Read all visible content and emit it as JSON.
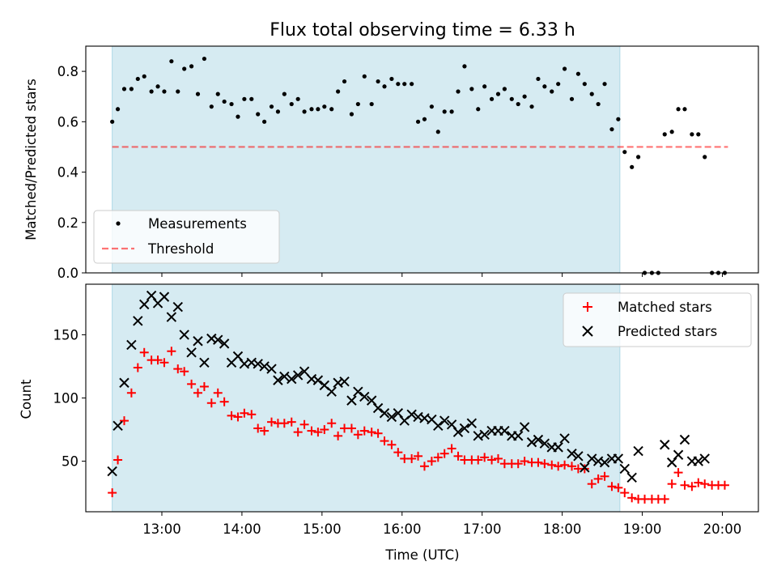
{
  "figure": {
    "title": "Flux total observing time = 6.33 h",
    "xlabel": "Time (UTC)",
    "x_tick_labels": [
      "13:00",
      "14:00",
      "15:00",
      "16:00",
      "17:00",
      "18:00",
      "19:00",
      "20:00"
    ],
    "colors": {
      "shade": "#add8e6",
      "measurement": "#000000",
      "threshold": "#ff0000",
      "matched": "#ff0000",
      "predicted": "#000000"
    }
  },
  "chart_data": [
    {
      "type": "scatter",
      "ylabel": "Matched/Predicted stars",
      "ylim": [
        0,
        0.9
      ],
      "xlim_hours": [
        12.05,
        20.45
      ],
      "y_ticks": [
        0.0,
        0.2,
        0.4,
        0.6,
        0.8
      ],
      "y_tick_labels": [
        "0.0",
        "0.2",
        "0.4",
        "0.6",
        "0.8"
      ],
      "grid": false,
      "legend_position": "lower-left",
      "shaded_span_hours": [
        12.38,
        18.72
      ],
      "threshold": {
        "name": "Threshold",
        "value": 0.5,
        "x_range_hours": [
          12.38,
          20.07
        ],
        "style": "dashed"
      },
      "series": [
        {
          "name": "Measurements",
          "x_hours": [
            12.38,
            12.45,
            12.53,
            12.62,
            12.7,
            12.78,
            12.87,
            12.95,
            13.03,
            13.12,
            13.2,
            13.28,
            13.37,
            13.45,
            13.53,
            13.62,
            13.7,
            13.78,
            13.87,
            13.95,
            14.03,
            14.12,
            14.2,
            14.28,
            14.37,
            14.45,
            14.53,
            14.62,
            14.7,
            14.78,
            14.87,
            14.95,
            15.03,
            15.12,
            15.2,
            15.28,
            15.37,
            15.45,
            15.53,
            15.62,
            15.7,
            15.78,
            15.87,
            15.95,
            16.03,
            16.12,
            16.2,
            16.28,
            16.37,
            16.45,
            16.53,
            16.62,
            16.7,
            16.78,
            16.87,
            16.95,
            17.03,
            17.12,
            17.2,
            17.28,
            17.37,
            17.45,
            17.53,
            17.62,
            17.7,
            17.78,
            17.87,
            17.95,
            18.03,
            18.12,
            18.2,
            18.28,
            18.37,
            18.45,
            18.53,
            18.62,
            18.7,
            18.78,
            18.87,
            18.95,
            19.03,
            19.12,
            19.2,
            19.28,
            19.37,
            19.45,
            19.53,
            19.62,
            19.7,
            19.78,
            19.87,
            19.95,
            20.03
          ],
          "y": [
            0.6,
            0.65,
            0.73,
            0.73,
            0.77,
            0.78,
            0.72,
            0.74,
            0.72,
            0.84,
            0.72,
            0.81,
            0.82,
            0.71,
            0.85,
            0.66,
            0.71,
            0.68,
            0.67,
            0.62,
            0.69,
            0.69,
            0.63,
            0.6,
            0.66,
            0.64,
            0.71,
            0.67,
            0.69,
            0.64,
            0.65,
            0.65,
            0.66,
            0.65,
            0.72,
            0.76,
            0.63,
            0.67,
            0.78,
            0.67,
            0.76,
            0.74,
            0.77,
            0.75,
            0.75,
            0.75,
            0.6,
            0.61,
            0.66,
            0.56,
            0.64,
            0.64,
            0.72,
            0.82,
            0.73,
            0.65,
            0.74,
            0.69,
            0.71,
            0.73,
            0.69,
            0.67,
            0.7,
            0.66,
            0.77,
            0.74,
            0.72,
            0.75,
            0.81,
            0.69,
            0.79,
            0.75,
            0.71,
            0.67,
            0.75,
            0.57,
            0.61,
            0.48,
            0.42,
            0.46,
            0.0,
            0.0,
            0.0,
            0.55,
            0.56,
            0.65,
            0.65,
            0.55,
            0.55,
            0.46,
            0.0,
            0.0,
            0.0
          ]
        }
      ]
    },
    {
      "type": "scatter",
      "ylabel": "Count",
      "ylim": [
        10,
        190
      ],
      "xlim_hours": [
        12.05,
        20.45
      ],
      "y_ticks": [
        50,
        100,
        150
      ],
      "y_tick_labels": [
        "50",
        "100",
        "150"
      ],
      "grid": false,
      "legend_position": "top-right",
      "shaded_span_hours": [
        12.38,
        18.72
      ],
      "series": [
        {
          "name": "Matched stars",
          "marker": "plus",
          "x_hours": [
            12.38,
            12.45,
            12.53,
            12.62,
            12.7,
            12.78,
            12.87,
            12.95,
            13.03,
            13.12,
            13.2,
            13.28,
            13.37,
            13.45,
            13.53,
            13.62,
            13.7,
            13.78,
            13.87,
            13.95,
            14.03,
            14.12,
            14.2,
            14.28,
            14.37,
            14.45,
            14.53,
            14.62,
            14.7,
            14.78,
            14.87,
            14.95,
            15.03,
            15.12,
            15.2,
            15.28,
            15.37,
            15.45,
            15.53,
            15.62,
            15.7,
            15.78,
            15.87,
            15.95,
            16.03,
            16.12,
            16.2,
            16.28,
            16.37,
            16.45,
            16.53,
            16.62,
            16.7,
            16.78,
            16.87,
            16.95,
            17.03,
            17.12,
            17.2,
            17.28,
            17.37,
            17.45,
            17.53,
            17.62,
            17.7,
            17.78,
            17.87,
            17.95,
            18.03,
            18.12,
            18.2,
            18.28,
            18.37,
            18.45,
            18.53,
            18.62,
            18.7,
            18.78,
            18.87,
            18.95,
            19.03,
            19.12,
            19.2,
            19.28,
            19.37,
            19.45,
            19.53,
            19.62,
            19.7,
            19.78,
            19.87,
            19.95,
            20.03
          ],
          "y": [
            25,
            51,
            82,
            104,
            124,
            136,
            130,
            130,
            128,
            137,
            123,
            121,
            111,
            104,
            109,
            96,
            104,
            97,
            86,
            85,
            88,
            87,
            76,
            74,
            81,
            80,
            80,
            81,
            73,
            79,
            74,
            73,
            75,
            80,
            70,
            76,
            76,
            71,
            74,
            73,
            72,
            66,
            63,
            57,
            52,
            52,
            54,
            46,
            50,
            53,
            56,
            60,
            54,
            51,
            51,
            51,
            53,
            51,
            52,
            48,
            48,
            48,
            50,
            49,
            49,
            48,
            47,
            46,
            47,
            46,
            44,
            44,
            32,
            36,
            38,
            30,
            29,
            25,
            21,
            20,
            20,
            20,
            20,
            20,
            32,
            41,
            31,
            30,
            33,
            32,
            31,
            31,
            31
          ]
        },
        {
          "name": "Predicted stars",
          "marker": "x",
          "x_hours": [
            12.38,
            12.45,
            12.53,
            12.62,
            12.7,
            12.78,
            12.87,
            12.95,
            13.03,
            13.12,
            13.2,
            13.28,
            13.37,
            13.45,
            13.53,
            13.62,
            13.7,
            13.78,
            13.87,
            13.95,
            14.03,
            14.12,
            14.2,
            14.28,
            14.37,
            14.45,
            14.53,
            14.62,
            14.7,
            14.78,
            14.87,
            14.95,
            15.03,
            15.12,
            15.2,
            15.28,
            15.37,
            15.45,
            15.53,
            15.62,
            15.7,
            15.78,
            15.87,
            15.95,
            16.03,
            16.12,
            16.2,
            16.28,
            16.37,
            16.45,
            16.53,
            16.62,
            16.7,
            16.78,
            16.87,
            16.95,
            17.03,
            17.12,
            17.2,
            17.28,
            17.37,
            17.45,
            17.53,
            17.62,
            17.7,
            17.78,
            17.87,
            17.95,
            18.03,
            18.12,
            18.2,
            18.28,
            18.37,
            18.45,
            18.53,
            18.62,
            18.7,
            18.78,
            18.87,
            18.95,
            19.28,
            19.37,
            19.45,
            19.53,
            19.62,
            19.7,
            19.78
          ],
          "y": [
            42,
            78,
            112,
            142,
            161,
            174,
            181,
            175,
            180,
            164,
            172,
            150,
            136,
            145,
            128,
            147,
            146,
            143,
            128,
            133,
            127,
            128,
            127,
            125,
            123,
            114,
            117,
            115,
            118,
            121,
            115,
            114,
            110,
            105,
            112,
            113,
            98,
            105,
            101,
            98,
            92,
            88,
            85,
            88,
            82,
            87,
            85,
            84,
            83,
            78,
            82,
            79,
            73,
            76,
            80,
            70,
            71,
            74,
            74,
            74,
            70,
            70,
            77,
            65,
            67,
            64,
            61,
            61,
            68,
            56,
            54,
            45,
            52,
            50,
            49,
            52,
            52,
            44,
            37,
            58,
            63,
            49,
            55,
            67,
            50,
            50,
            52
          ]
        }
      ]
    }
  ]
}
